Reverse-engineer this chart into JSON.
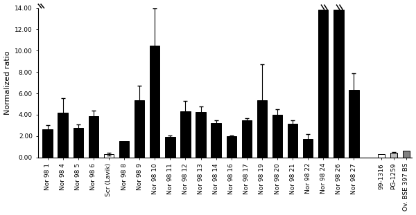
{
  "categories": [
    "Nor 98 1",
    "Nor 98 4",
    "Nor 98 5",
    "Nor 98 6",
    "Scr (Lavik)",
    "Nor 98 8",
    "Nor 98 9",
    "Nor 98 10",
    "Nor 98 11",
    "Nor 98 12",
    "Nor 98 13",
    "Nor 98 14",
    "Nor 98 16",
    "Nor 98 17",
    "Nor 98 19",
    "Nor 98 20",
    "Nor 98 21",
    "Nor 98 22",
    "Nor 98 24",
    "Nor 98 26",
    "Nor 98 27",
    "99-1316",
    "PG-1259",
    "Ov. BSE 397 BS"
  ],
  "values": [
    2.6,
    4.2,
    2.75,
    3.85,
    0.3,
    1.5,
    5.35,
    10.5,
    1.9,
    4.3,
    4.25,
    3.2,
    2.0,
    3.5,
    5.35,
    4.0,
    3.15,
    1.7,
    13.85,
    13.85,
    6.3,
    0.28,
    0.45,
    0.65
  ],
  "errors": [
    0.45,
    1.35,
    0.35,
    0.55,
    0.12,
    0.0,
    1.35,
    3.5,
    0.12,
    1.0,
    0.5,
    0.25,
    0.05,
    0.2,
    3.35,
    0.5,
    0.35,
    0.45,
    0.0,
    0.0,
    1.55,
    0.0,
    0.05,
    0.0
  ],
  "bar_colors": [
    "black",
    "black",
    "black",
    "black",
    "white",
    "black",
    "black",
    "black",
    "black",
    "black",
    "black",
    "black",
    "black",
    "black",
    "black",
    "black",
    "black",
    "black",
    "black",
    "black",
    "black",
    "white",
    "#c0c0c0",
    "#808080"
  ],
  "edge_colors": [
    "black",
    "black",
    "black",
    "black",
    "black",
    "black",
    "black",
    "black",
    "black",
    "black",
    "black",
    "black",
    "black",
    "black",
    "black",
    "black",
    "black",
    "black",
    "black",
    "black",
    "black",
    "black",
    "black",
    "black"
  ],
  "truncated": [
    false,
    false,
    false,
    false,
    false,
    false,
    false,
    false,
    false,
    false,
    false,
    false,
    false,
    false,
    false,
    false,
    false,
    false,
    true,
    true,
    false,
    false,
    false,
    false
  ],
  "x_positions": [
    0,
    1,
    2,
    3,
    4,
    5,
    6,
    7,
    8,
    9,
    10,
    11,
    12,
    13,
    14,
    15,
    16,
    17,
    18,
    19,
    20,
    21.8,
    22.6,
    23.4
  ],
  "ylabel": "Normalized ratio",
  "ylim": [
    0,
    14.0
  ],
  "yticks": [
    0.0,
    2.0,
    4.0,
    6.0,
    8.0,
    10.0,
    12.0,
    14.0
  ],
  "background_color": "#ffffff",
  "bar_width": 0.65,
  "ref_bar_width": 0.45,
  "ylabel_fontsize": 8,
  "tick_fontsize": 6.5
}
